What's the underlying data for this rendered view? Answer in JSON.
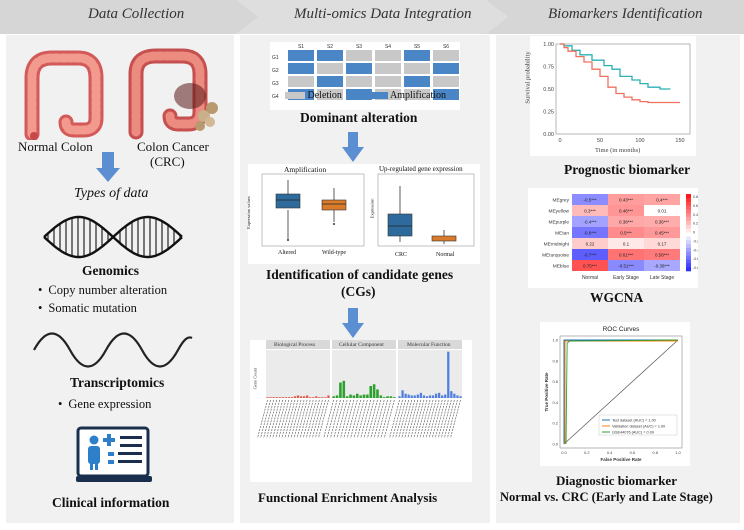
{
  "header": {
    "step1": "Data Collection",
    "step2": "Multi-omics Data Integration",
    "step3": "Biomarkers Identification",
    "fill": "#dcdcdc"
  },
  "left": {
    "normal_colon": "Normal Colon",
    "colon_cancer_line1": "Colon Cancer",
    "colon_cancer_line2": "(CRC)",
    "types_of_data": "Types of data",
    "genomics": "Genomics",
    "genomics_items": [
      "Copy number alteration",
      "Somatic mutation"
    ],
    "transcriptomics": "Transcriptomics",
    "transcriptomics_items": [
      "Gene expression"
    ],
    "clinical": "Clinical information"
  },
  "middle": {
    "dominant": {
      "col_labels": [
        "S1",
        "S2",
        "S3",
        "S4",
        "S5",
        "S6"
      ],
      "row_labels": [
        "G1",
        "G2",
        "G3",
        "G4"
      ],
      "grid": [
        [
          "B",
          "B",
          "G",
          "G",
          "B",
          "G"
        ],
        [
          "B",
          "G",
          "B",
          "G",
          "G",
          "B"
        ],
        [
          "G",
          "B",
          "G",
          "G",
          "B",
          "G"
        ],
        [
          "B",
          "G",
          "B",
          "G",
          "G",
          "B"
        ]
      ],
      "legend_deletion": "Deletion",
      "legend_amplification": "Amplification",
      "title": "Dominant alteration",
      "colors": {
        "amplification": "#4a86c5",
        "deletion": "#c8c8c8"
      }
    },
    "candidate": {
      "left_title": "Amplification",
      "left_ylabel": "Expression values",
      "left_categories": [
        "Altered",
        "Wild-type"
      ],
      "right_title": "Up-regulated gene expression",
      "right_ylabel": "Expression",
      "right_categories": [
        "CRC",
        "Normal"
      ],
      "title_line1": "Identification of candidate genes",
      "title_line2": "(CGs)",
      "colors": {
        "blue": "#2e6b9c",
        "orange": "#d97b2b"
      }
    },
    "enrichment": {
      "facets": [
        "Biological Process",
        "Cellular Component",
        "Molecular Function"
      ],
      "ylabel": "Gene Count",
      "title": "Functional Enrichment Analysis",
      "colors": {
        "bp": "#e25a4a",
        "cc": "#2ca02c",
        "mf": "#4f7fe0"
      }
    }
  },
  "right": {
    "survival": {
      "ylabel": "Survival probability",
      "xlabel": "Time (in months)",
      "yticks": [
        "1.00",
        "0.75",
        "0.50",
        "0.25",
        "0.00"
      ],
      "xticks": [
        "0",
        "50",
        "100",
        "150"
      ],
      "caption": "Prognostic biomarker",
      "colors": {
        "high": "#f07060",
        "low": "#2ab0b5"
      }
    },
    "wgcna": {
      "rows": [
        "MEgrey",
        "MEyellow",
        "MEpurple",
        "MEtan",
        "MEmidnight",
        "MEturquoise",
        "MEblue"
      ],
      "cols": [
        "Normal",
        "Early Stage",
        "Late Stage"
      ],
      "cells": [
        [
          "-0.5***",
          "0.43***",
          "0.4***"
        ],
        [
          "0.3***",
          "0.46***",
          "0.01"
        ],
        [
          "-0.4***",
          "0.38***",
          "0.36***"
        ],
        [
          "-0.6***",
          "0.5***",
          "0.45***"
        ],
        [
          "0.22",
          "0.1",
          "0.17"
        ],
        [
          "-0.7***",
          "0.61***",
          "0.58***"
        ],
        [
          "0.75***",
          "-0.51***",
          "-0.38***"
        ]
      ],
      "values": [
        [
          -0.5,
          0.43,
          0.4
        ],
        [
          0.3,
          0.46,
          0.01
        ],
        [
          -0.4,
          0.38,
          0.36
        ],
        [
          -0.6,
          0.5,
          0.45
        ],
        [
          0.22,
          0.1,
          0.17
        ],
        [
          -0.7,
          0.61,
          0.58
        ],
        [
          0.75,
          -0.51,
          -0.38
        ]
      ],
      "scale_ticks": [
        "0.8",
        "0.6",
        "0.4",
        "0.2",
        "0",
        "-0.2",
        "-0.4",
        "-0.6",
        "-0.8"
      ],
      "caption": "WGCNA"
    },
    "roc": {
      "title": "ROC Curves",
      "xlabel": "False Positive Rate",
      "ylabel": "True Positive Rate",
      "ticks": [
        "0.0",
        "0.2",
        "0.4",
        "0.6",
        "0.8",
        "1.0"
      ],
      "legend": [
        {
          "label": "Test dataset (AUC) = 1.00",
          "color": "#1f77b4"
        },
        {
          "label": "Validation dataset (AUC) = 1.00",
          "color": "#ff7f0e"
        },
        {
          "label": "GSE44076 (AUC) = 0.99",
          "color": "#2ca02c"
        }
      ],
      "caption1": "Diagnostic biomarker",
      "caption2": "Normal vs. CRC (Early and Late Stage)"
    }
  }
}
